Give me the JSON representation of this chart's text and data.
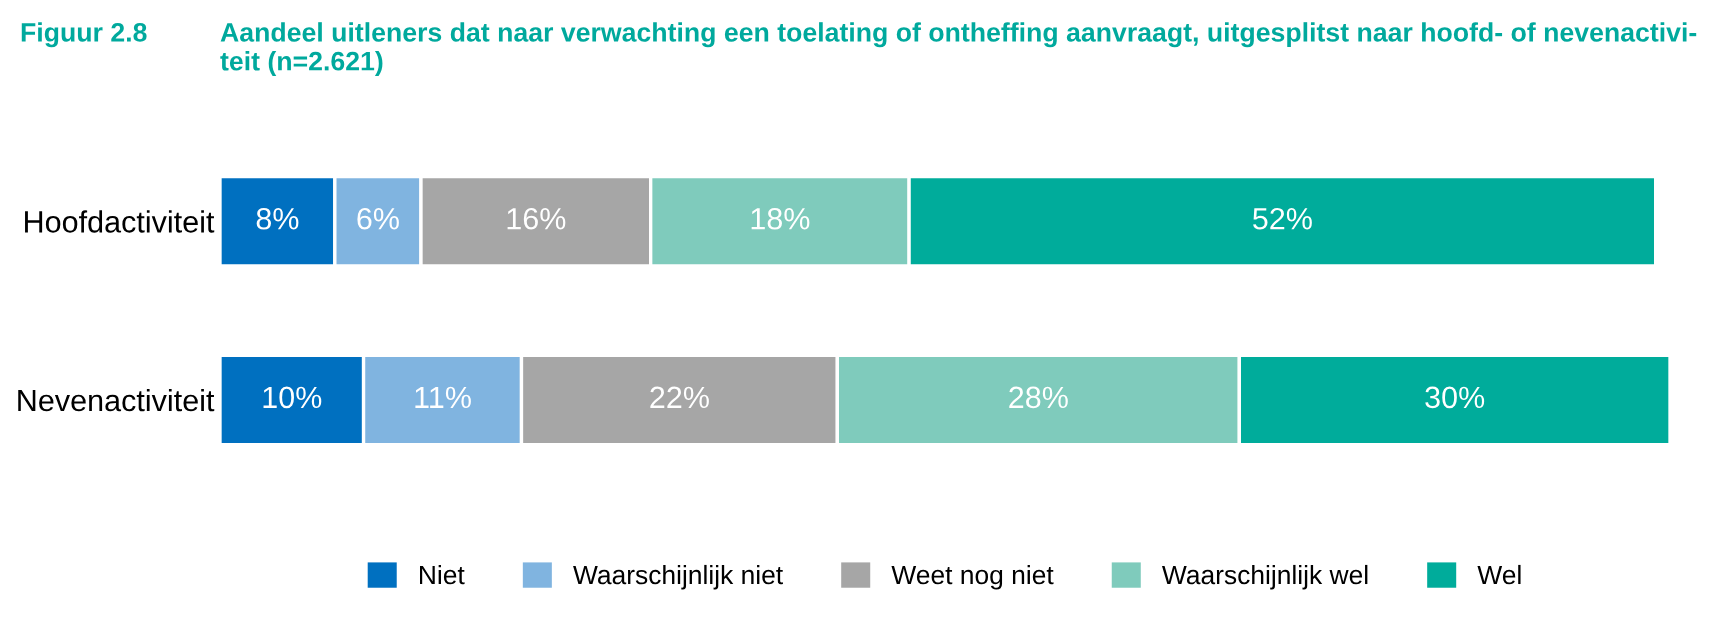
{
  "chart_data": {
    "type": "bar",
    "orientation": "horizontal",
    "stacked": true,
    "title": "Aandeel uitleners dat naar verwachting een toelating of ontheffing aanvraagt, uitgesplitst naar hoofd- of nevenactivi-\nteit (n=2.621)",
    "annotations": [
      "Figuur 2.8"
    ],
    "categories": [
      "Hoofdactiviteit",
      "Nevenactiviteit"
    ],
    "series": [
      {
        "name": "Niet",
        "color": "#0070c0",
        "values": [
          8,
          10
        ],
        "value_labels": [
          "8%",
          "10%"
        ]
      },
      {
        "name": "Waarschijnlijk niet",
        "color": "#80b4e0",
        "values": [
          6,
          11
        ],
        "value_labels": [
          "6%",
          "11%"
        ]
      },
      {
        "name": "Weet nog niet",
        "color": "#a6a6a6",
        "values": [
          16,
          22
        ],
        "value_labels": [
          "16%",
          "22%"
        ]
      },
      {
        "name": "Waarschijnlijk wel",
        "color": "#7fcbbc",
        "values": [
          18,
          28
        ],
        "value_labels": [
          "18%",
          "28%"
        ]
      },
      {
        "name": "Wel",
        "color": "#00ac9b",
        "values": [
          52,
          30
        ],
        "value_labels": [
          "52%",
          "30%"
        ]
      }
    ],
    "legend": "bottom",
    "grid": false
  }
}
